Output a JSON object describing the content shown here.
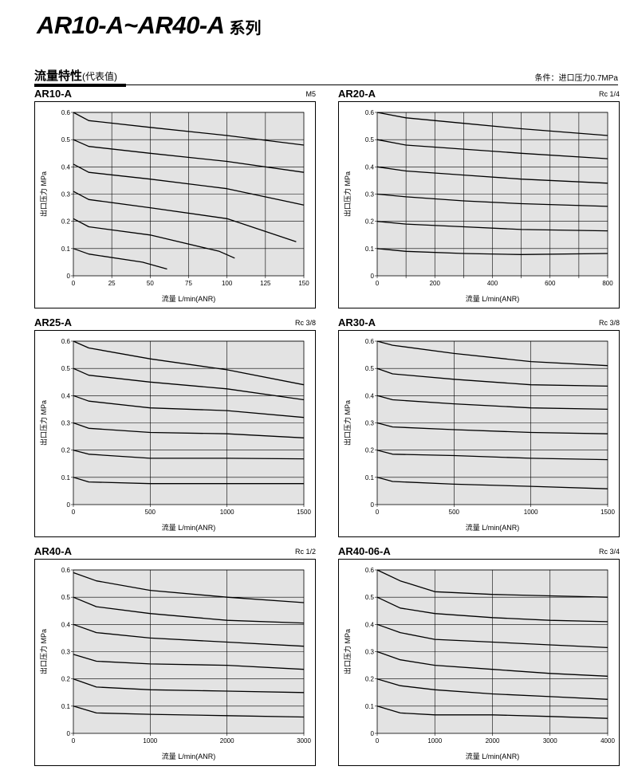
{
  "page": {
    "title_main": "AR10-A~AR40-A",
    "title_suffix": "系列",
    "section_title": "流量特性",
    "section_subtitle": "(代表值)",
    "condition": "条件：进口压力0.7MPa"
  },
  "chart_data": [
    {
      "type": "line",
      "model": "AR10-A",
      "port": "M5",
      "xlabel": "流量 L/min(ANR)",
      "ylabel": "出口压力 MPa",
      "xlim": [
        0,
        150
      ],
      "ylim": [
        0,
        0.6
      ],
      "xticks": [
        0,
        25,
        50,
        75,
        100,
        125,
        150
      ],
      "xtick_labels": [
        "0",
        "25",
        "50",
        "75",
        "100",
        "125",
        "150"
      ],
      "yticks": [
        0,
        0.1,
        0.2,
        0.3,
        0.4,
        0.5,
        0.6
      ],
      "ytick_labels": [
        "0",
        "0.1",
        "0.2",
        "0.3",
        "0.4",
        "0.5",
        "0.6"
      ],
      "series": [
        {
          "x": [
            0,
            10,
            50,
            100,
            150
          ],
          "y": [
            0.6,
            0.57,
            0.545,
            0.515,
            0.48
          ]
        },
        {
          "x": [
            0,
            10,
            50,
            100,
            150
          ],
          "y": [
            0.5,
            0.475,
            0.45,
            0.42,
            0.38
          ]
        },
        {
          "x": [
            0,
            10,
            50,
            100,
            150
          ],
          "y": [
            0.41,
            0.38,
            0.355,
            0.32,
            0.26
          ]
        },
        {
          "x": [
            0,
            10,
            50,
            100,
            145
          ],
          "y": [
            0.31,
            0.28,
            0.25,
            0.21,
            0.125
          ]
        },
        {
          "x": [
            0,
            10,
            50,
            95,
            105
          ],
          "y": [
            0.21,
            0.18,
            0.15,
            0.09,
            0.065
          ]
        },
        {
          "x": [
            0,
            10,
            45,
            61
          ],
          "y": [
            0.1,
            0.08,
            0.05,
            0.025
          ]
        }
      ]
    },
    {
      "type": "line",
      "model": "AR20-A",
      "port": "Rc 1/4",
      "xlabel": "流量 L/min(ANR)",
      "ylabel": "出口压力 MPa",
      "xlim": [
        0,
        800
      ],
      "ylim": [
        0,
        0.6
      ],
      "xticks": [
        0,
        100,
        200,
        300,
        400,
        500,
        600,
        700,
        800
      ],
      "xtick_labels": [
        "0",
        "",
        "200",
        "",
        "400",
        "",
        "600",
        "",
        "800"
      ],
      "yticks": [
        0,
        0.1,
        0.2,
        0.3,
        0.4,
        0.5,
        0.6
      ],
      "ytick_labels": [
        "0",
        "0.1",
        "0.2",
        "0.3",
        "0.4",
        "0.5",
        "0.6"
      ],
      "series": [
        {
          "x": [
            0,
            100,
            300,
            500,
            800
          ],
          "y": [
            0.6,
            0.58,
            0.56,
            0.54,
            0.515
          ]
        },
        {
          "x": [
            0,
            100,
            300,
            500,
            800
          ],
          "y": [
            0.5,
            0.48,
            0.465,
            0.45,
            0.43
          ]
        },
        {
          "x": [
            0,
            100,
            300,
            500,
            800
          ],
          "y": [
            0.4,
            0.385,
            0.37,
            0.355,
            0.34
          ]
        },
        {
          "x": [
            0,
            100,
            300,
            500,
            800
          ],
          "y": [
            0.3,
            0.29,
            0.275,
            0.265,
            0.255
          ]
        },
        {
          "x": [
            0,
            100,
            300,
            500,
            800
          ],
          "y": [
            0.2,
            0.19,
            0.18,
            0.17,
            0.165
          ]
        },
        {
          "x": [
            0,
            100,
            300,
            500,
            800
          ],
          "y": [
            0.1,
            0.09,
            0.082,
            0.078,
            0.082
          ]
        }
      ]
    },
    {
      "type": "line",
      "model": "AR25-A",
      "port": "Rc 3/8",
      "xlabel": "流量 L/min(ANR)",
      "ylabel": "出口压力 MPa",
      "xlim": [
        0,
        1500
      ],
      "ylim": [
        0,
        0.6
      ],
      "xticks": [
        0,
        500,
        1000,
        1500
      ],
      "xtick_labels": [
        "0",
        "500",
        "1000",
        "1500"
      ],
      "yticks": [
        0,
        0.1,
        0.2,
        0.3,
        0.4,
        0.5,
        0.6
      ],
      "ytick_labels": [
        "0",
        "0.1",
        "0.2",
        "0.3",
        "0.4",
        "0.5",
        "0.6"
      ],
      "series": [
        {
          "x": [
            0,
            100,
            500,
            1000,
            1500
          ],
          "y": [
            0.6,
            0.575,
            0.535,
            0.495,
            0.44
          ]
        },
        {
          "x": [
            0,
            100,
            500,
            1000,
            1500
          ],
          "y": [
            0.5,
            0.475,
            0.45,
            0.425,
            0.385
          ]
        },
        {
          "x": [
            0,
            100,
            500,
            1000,
            1500
          ],
          "y": [
            0.4,
            0.38,
            0.355,
            0.345,
            0.32
          ]
        },
        {
          "x": [
            0,
            100,
            500,
            1000,
            1500
          ],
          "y": [
            0.3,
            0.28,
            0.265,
            0.26,
            0.245
          ]
        },
        {
          "x": [
            0,
            100,
            500,
            1000,
            1500
          ],
          "y": [
            0.2,
            0.185,
            0.17,
            0.17,
            0.168
          ]
        },
        {
          "x": [
            0,
            100,
            500,
            1000,
            1500
          ],
          "y": [
            0.1,
            0.083,
            0.077,
            0.077,
            0.077
          ]
        }
      ]
    },
    {
      "type": "line",
      "model": "AR30-A",
      "port": "Rc 3/8",
      "xlabel": "流量 L/min(ANR)",
      "ylabel": "出口压力 MPa",
      "xlim": [
        0,
        1500
      ],
      "ylim": [
        0,
        0.6
      ],
      "xticks": [
        0,
        500,
        1000,
        1500
      ],
      "xtick_labels": [
        "0",
        "500",
        "1000",
        "1500"
      ],
      "yticks": [
        0,
        0.1,
        0.2,
        0.3,
        0.4,
        0.5,
        0.6
      ],
      "ytick_labels": [
        "0",
        "0.1",
        "0.2",
        "0.3",
        "0.4",
        "0.5",
        "0.6"
      ],
      "series": [
        {
          "x": [
            0,
            100,
            500,
            1000,
            1500
          ],
          "y": [
            0.6,
            0.585,
            0.555,
            0.525,
            0.51
          ]
        },
        {
          "x": [
            0,
            100,
            500,
            1000,
            1500
          ],
          "y": [
            0.5,
            0.48,
            0.46,
            0.44,
            0.435
          ]
        },
        {
          "x": [
            0,
            100,
            500,
            1000,
            1500
          ],
          "y": [
            0.4,
            0.385,
            0.37,
            0.355,
            0.35
          ]
        },
        {
          "x": [
            0,
            100,
            500,
            1000,
            1500
          ],
          "y": [
            0.3,
            0.285,
            0.275,
            0.265,
            0.26
          ]
        },
        {
          "x": [
            0,
            100,
            500,
            1000,
            1500
          ],
          "y": [
            0.2,
            0.185,
            0.18,
            0.17,
            0.165
          ]
        },
        {
          "x": [
            0,
            100,
            500,
            1000,
            1500
          ],
          "y": [
            0.1,
            0.085,
            0.075,
            0.067,
            0.058
          ]
        }
      ]
    },
    {
      "type": "line",
      "model": "AR40-A",
      "port": "Rc 1/2",
      "xlabel": "流量 L/min(ANR)",
      "ylabel": "出口压力 MPa",
      "xlim": [
        0,
        3000
      ],
      "ylim": [
        0,
        0.6
      ],
      "xticks": [
        0,
        1000,
        2000,
        3000
      ],
      "xtick_labels": [
        "0",
        "1000",
        "2000",
        "3000"
      ],
      "yticks": [
        0,
        0.1,
        0.2,
        0.3,
        0.4,
        0.5,
        0.6
      ],
      "ytick_labels": [
        "0",
        "0.1",
        "0.2",
        "0.3",
        "0.4",
        "0.5",
        "0.6"
      ],
      "series": [
        {
          "x": [
            0,
            300,
            1000,
            2000,
            3000
          ],
          "y": [
            0.59,
            0.56,
            0.525,
            0.5,
            0.48
          ]
        },
        {
          "x": [
            0,
            300,
            1000,
            2000,
            3000
          ],
          "y": [
            0.5,
            0.465,
            0.44,
            0.415,
            0.405
          ]
        },
        {
          "x": [
            0,
            300,
            1000,
            2000,
            3000
          ],
          "y": [
            0.4,
            0.37,
            0.35,
            0.335,
            0.32
          ]
        },
        {
          "x": [
            0,
            300,
            1000,
            2000,
            3000
          ],
          "y": [
            0.29,
            0.265,
            0.255,
            0.25,
            0.235
          ]
        },
        {
          "x": [
            0,
            300,
            1000,
            2000,
            3000
          ],
          "y": [
            0.2,
            0.17,
            0.16,
            0.155,
            0.15
          ]
        },
        {
          "x": [
            0,
            300,
            1000,
            2000,
            3000
          ],
          "y": [
            0.1,
            0.075,
            0.07,
            0.065,
            0.06
          ]
        }
      ]
    },
    {
      "type": "line",
      "model": "AR40-06-A",
      "port": "Rc 3/4",
      "xlabel": "流量 L/min(ANR)",
      "ylabel": "出口压力 MPa",
      "xlim": [
        0,
        4000
      ],
      "ylim": [
        0,
        0.6
      ],
      "xticks": [
        0,
        1000,
        2000,
        3000,
        4000
      ],
      "xtick_labels": [
        "0",
        "1000",
        "2000",
        "3000",
        "4000"
      ],
      "yticks": [
        0,
        0.1,
        0.2,
        0.3,
        0.4,
        0.5,
        0.6
      ],
      "ytick_labels": [
        "0",
        "0.1",
        "0.2",
        "0.3",
        "0.4",
        "0.5",
        "0.6"
      ],
      "series": [
        {
          "x": [
            0,
            400,
            1000,
            2000,
            3000,
            4000
          ],
          "y": [
            0.6,
            0.56,
            0.52,
            0.51,
            0.505,
            0.5
          ]
        },
        {
          "x": [
            0,
            400,
            1000,
            2000,
            3000,
            4000
          ],
          "y": [
            0.5,
            0.46,
            0.44,
            0.425,
            0.415,
            0.41
          ]
        },
        {
          "x": [
            0,
            400,
            1000,
            2000,
            3000,
            4000
          ],
          "y": [
            0.4,
            0.37,
            0.345,
            0.335,
            0.325,
            0.315
          ]
        },
        {
          "x": [
            0,
            400,
            1000,
            2000,
            3000,
            4000
          ],
          "y": [
            0.3,
            0.27,
            0.25,
            0.235,
            0.22,
            0.21
          ]
        },
        {
          "x": [
            0,
            400,
            1000,
            2000,
            3000,
            4000
          ],
          "y": [
            0.2,
            0.175,
            0.16,
            0.145,
            0.135,
            0.125
          ]
        },
        {
          "x": [
            0,
            400,
            1000,
            2000,
            3000,
            4000
          ],
          "y": [
            0.1,
            0.075,
            0.068,
            0.068,
            0.062,
            0.055
          ]
        }
      ]
    }
  ]
}
